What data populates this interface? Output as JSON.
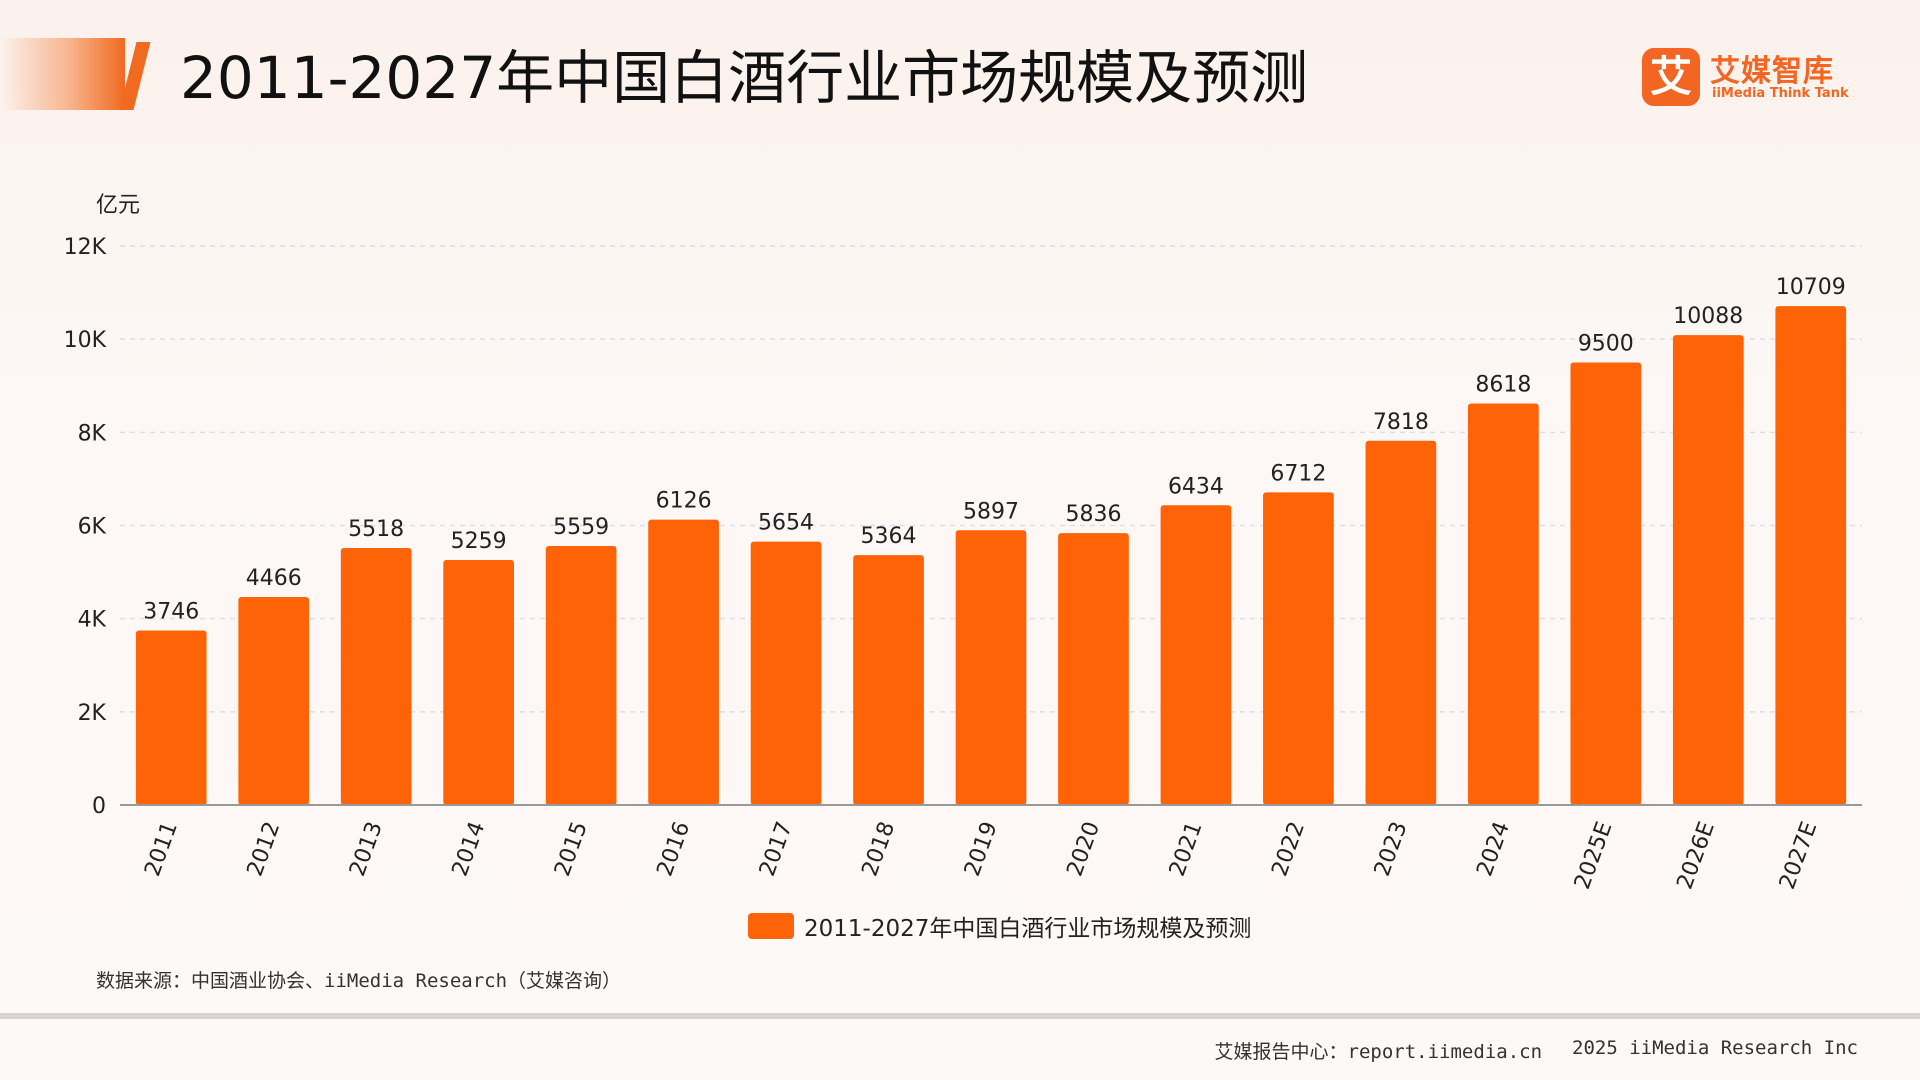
{
  "header": {
    "title": "2011-2027年中国白酒行业市场规模及预测",
    "logo_mark": "艾",
    "logo_cn": "艾媒智库",
    "logo_en": "iiMedia Think Tank"
  },
  "chart_data": {
    "type": "bar",
    "unit_label": "亿元",
    "categories": [
      "2011",
      "2012",
      "2013",
      "2014",
      "2015",
      "2016",
      "2017",
      "2018",
      "2019",
      "2020",
      "2021",
      "2022",
      "2023",
      "2024",
      "2025E",
      "2026E",
      "2027E"
    ],
    "series": [
      {
        "name": "2011-2027年中国白酒行业市场规模及预测",
        "values": [
          3746,
          4466,
          5518,
          5259,
          5559,
          6126,
          5654,
          5364,
          5897,
          5836,
          6434,
          6712,
          7818,
          8618,
          9500,
          10088,
          10709
        ]
      }
    ],
    "ylim": [
      0,
      12000
    ],
    "yticks": [
      0,
      2000,
      4000,
      6000,
      8000,
      10000,
      12000
    ],
    "ytick_labels": [
      "0",
      "2K",
      "4K",
      "6K",
      "8K",
      "10K",
      "12K"
    ],
    "grid": true,
    "legend_position": "bottom-center",
    "colors": {
      "bar": "#ff6307",
      "grid": "#d9dde6",
      "axis": "#999999"
    }
  },
  "source_note": "数据来源：中国酒业协会、iiMedia Research（艾媒咨询）",
  "footer": {
    "report_center": "艾媒报告中心：report.iimedia.cn",
    "copyright": "2025 iiMedia Research Inc"
  }
}
